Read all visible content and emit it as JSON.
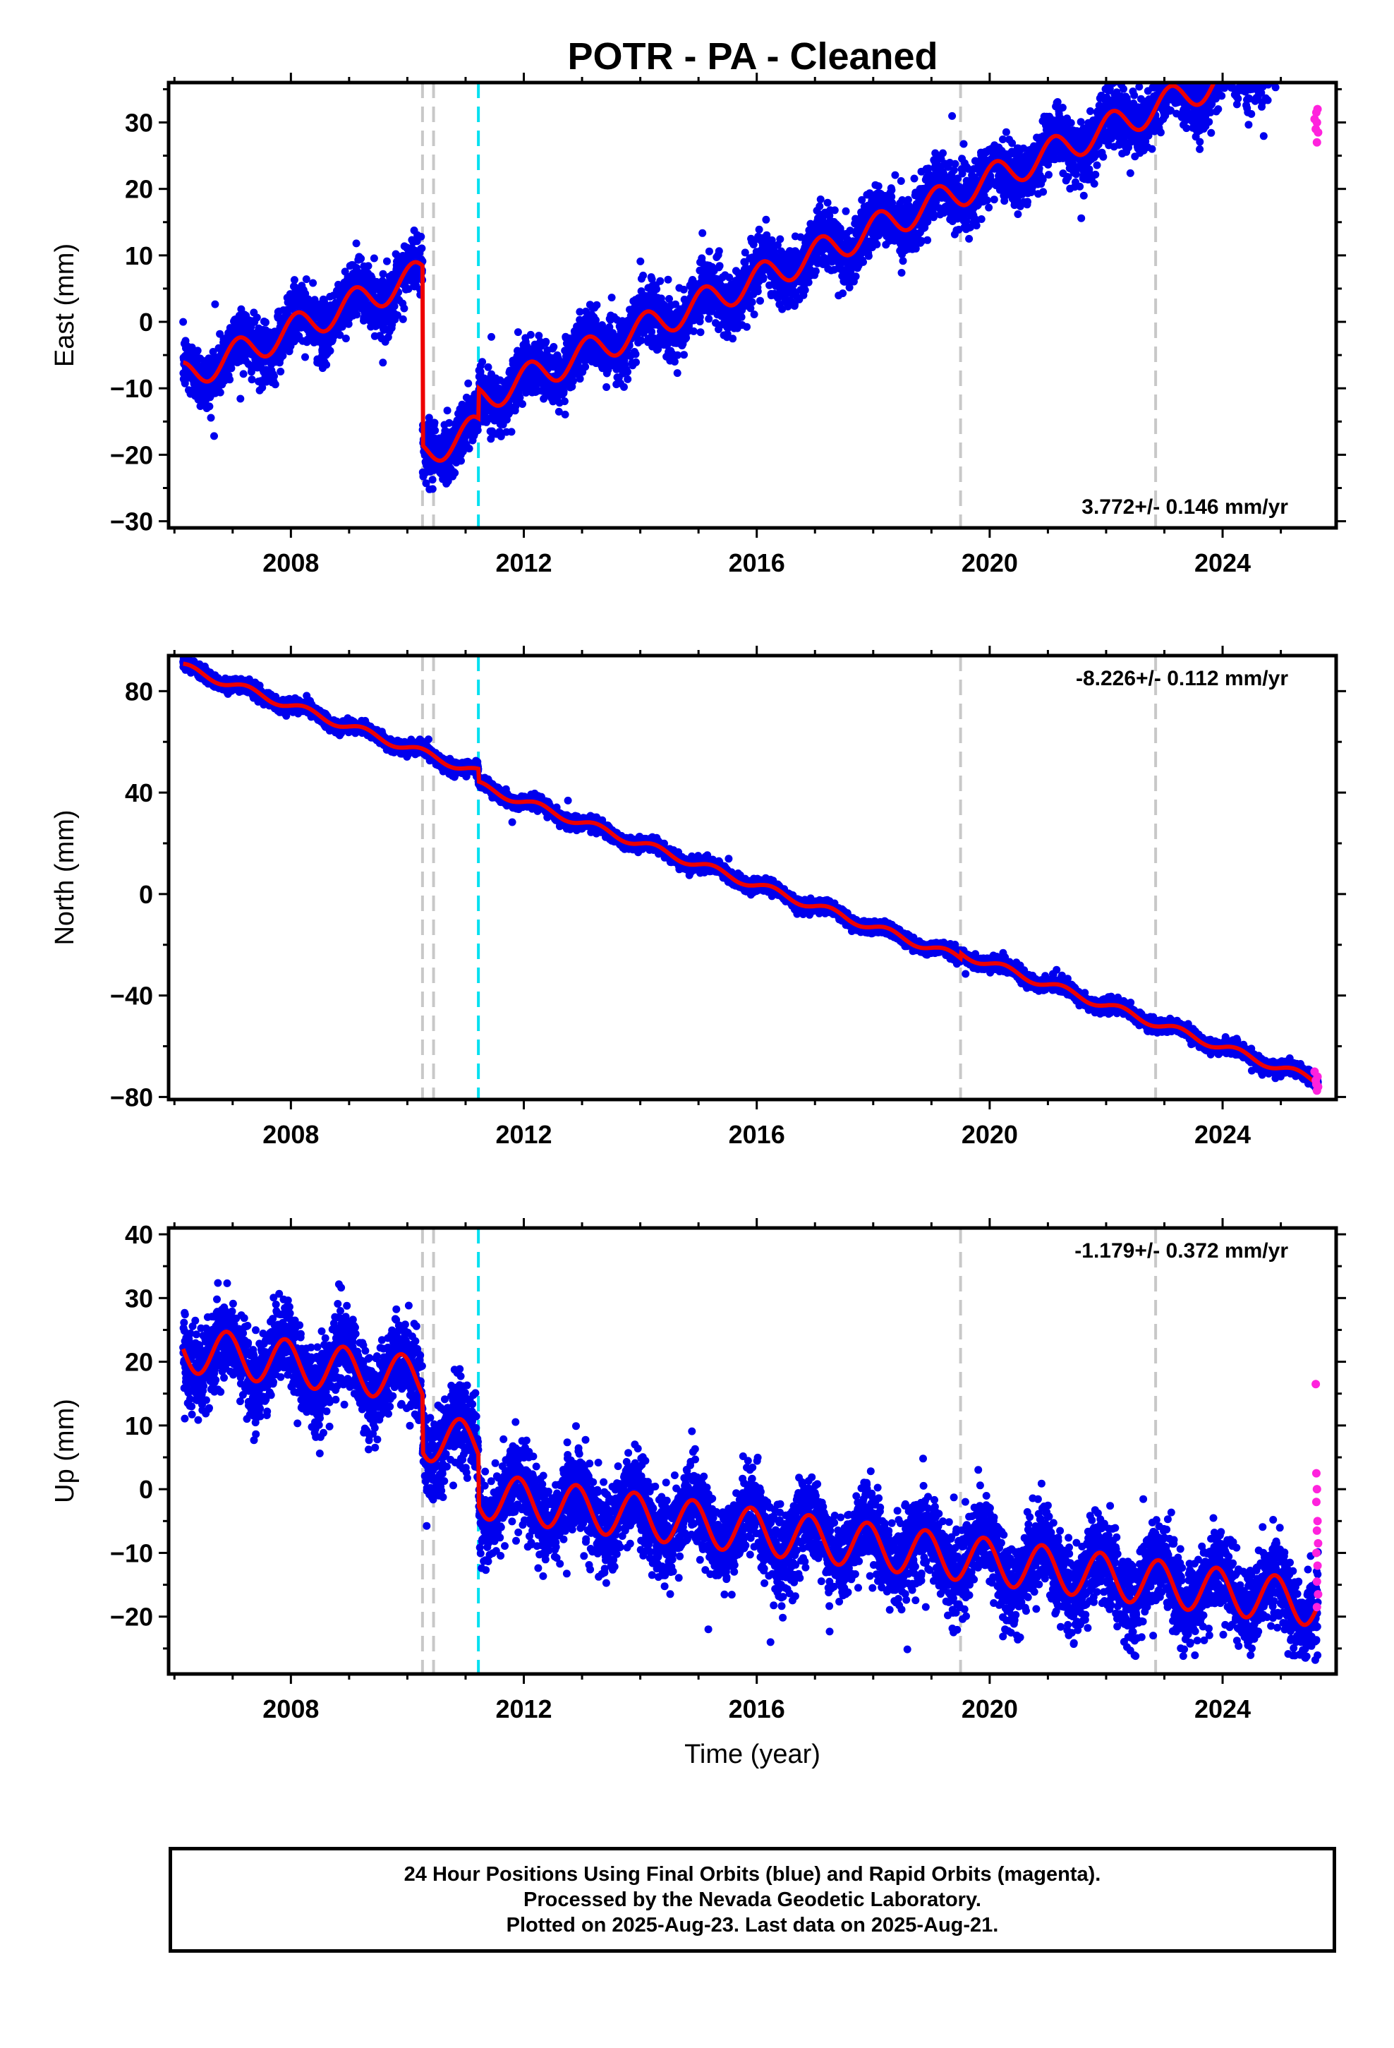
{
  "title": "POTR  - PA - Cleaned",
  "footer": {
    "line1": "24 Hour Positions Using Final Orbits (blue) and Rapid Orbits (magenta).",
    "line2": "Processed by the Nevada Geodetic Laboratory.",
    "line3": "Plotted on 2025-Aug-23. Last data on 2025-Aug-21."
  },
  "colors": {
    "final": "#0000ee",
    "rapid": "#ff22dd",
    "model": "#ee0000",
    "event_gray": "#c8c8c8",
    "event_cyan": "#00e0f0"
  },
  "chart_data": [
    {
      "type": "scatter",
      "ylabel": "East (mm)",
      "xlabel": "",
      "xlim": [
        2005.9,
        2025.95
      ],
      "ylim": [
        -31,
        36
      ],
      "xticks": [
        2008,
        2012,
        2016,
        2020,
        2024
      ],
      "xticklabels": [
        "2008",
        "2012",
        "2016",
        "2020",
        "2024"
      ],
      "yticks": [
        -30,
        -20,
        -10,
        0,
        10,
        20,
        30
      ],
      "yticklabels": [
        "−30",
        "−20",
        "−10",
        "0",
        "10",
        "20",
        "30"
      ],
      "rate": "3.772+/- 0.146 mm/yr",
      "rate_position": "bottom-right",
      "model": {
        "start": 2006.15,
        "end": 2025.64,
        "intercept": -8.3,
        "slope": 3.772,
        "amplitude": 2.3,
        "phase": 0.3,
        "offsets": [
          {
            "t": 2010.26,
            "d": -27.0
          },
          {
            "t": 2011.22,
            "d": 4.5
          }
        ]
      },
      "scatter": 2.2,
      "rapid_points": [
        [
          2025.58,
          30.5
        ],
        [
          2025.6,
          29.0
        ],
        [
          2025.61,
          31.5
        ],
        [
          2025.62,
          27.0
        ],
        [
          2025.63,
          32.0
        ],
        [
          2025.64,
          28.5
        ],
        [
          2025.62,
          30.0
        ]
      ]
    },
    {
      "type": "scatter",
      "ylabel": "North (mm)",
      "xlabel": "",
      "xlim": [
        2005.9,
        2025.95
      ],
      "ylim": [
        -81,
        94
      ],
      "xticks": [
        2008,
        2012,
        2016,
        2020,
        2024
      ],
      "xticklabels": [
        "2008",
        "2012",
        "2016",
        "2020",
        "2024"
      ],
      "yticks": [
        -80,
        -40,
        0,
        40,
        80
      ],
      "yticklabels": [
        "−80",
        "−40",
        "0",
        "40",
        "80"
      ],
      "rate": "-8.226+/- 0.112 mm/yr",
      "rate_position": "top-right",
      "model": {
        "start": 2006.15,
        "end": 2025.64,
        "intercept": 89.5,
        "slope": -8.226,
        "amplitude": 1.6,
        "phase": 0.15,
        "offsets": [
          {
            "t": 2011.22,
            "d": -5.0
          },
          {
            "t": 2019.5,
            "d": 2.0
          }
        ]
      },
      "scatter": 1.2,
      "rapid_points": [
        [
          2025.58,
          -70.0
        ],
        [
          2025.6,
          -73.5
        ],
        [
          2025.61,
          -75.0
        ],
        [
          2025.62,
          -77.5
        ],
        [
          2025.63,
          -72.0
        ],
        [
          2025.64,
          -76.0
        ]
      ]
    },
    {
      "type": "scatter",
      "ylabel": "Up (mm)",
      "xlabel": "Time (year)",
      "xlim": [
        2005.9,
        2025.95
      ],
      "ylim": [
        -29,
        41
      ],
      "xticks": [
        2008,
        2012,
        2016,
        2020,
        2024
      ],
      "xticklabels": [
        "2008",
        "2012",
        "2016",
        "2020",
        "2024"
      ],
      "yticks": [
        -20,
        -10,
        0,
        10,
        20,
        30,
        40
      ],
      "yticklabels": [
        "−20",
        "−10",
        "0",
        "10",
        "20",
        "30",
        "40"
      ],
      "rate": "-1.179+/- 0.372 mm/yr",
      "rate_position": "top-right",
      "model": {
        "start": 2006.15,
        "end": 2025.64,
        "intercept": 22.0,
        "slope": -1.179,
        "amplitude": 3.6,
        "phase": 0.5,
        "offsets": [
          {
            "t": 2010.26,
            "d": -9.0
          },
          {
            "t": 2011.22,
            "d": -8.0
          }
        ]
      },
      "scatter": 3.3,
      "rapid_points": [
        [
          2025.6,
          16.5
        ],
        [
          2025.61,
          2.5
        ],
        [
          2025.62,
          0.0
        ],
        [
          2025.61,
          -2.0
        ],
        [
          2025.63,
          -5.0
        ],
        [
          2025.62,
          -6.5
        ],
        [
          2025.64,
          -8.5
        ],
        [
          2025.61,
          -10.0
        ],
        [
          2025.63,
          -12.0
        ],
        [
          2025.62,
          -14.5
        ],
        [
          2025.64,
          -16.5
        ],
        [
          2025.62,
          -18.5
        ]
      ]
    }
  ],
  "events": {
    "gray": [
      2010.26,
      2010.45,
      2019.5,
      2022.85
    ],
    "cyan": [
      2011.22
    ]
  }
}
